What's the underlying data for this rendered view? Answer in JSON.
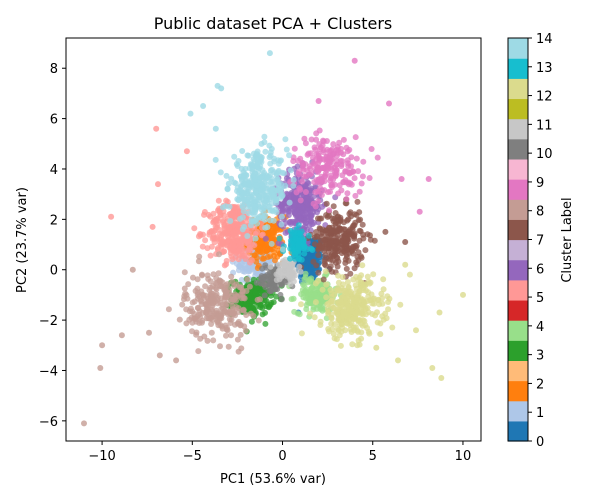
{
  "chart_data": {
    "type": "scatter",
    "title": "Public dataset PCA + Clusters",
    "xlabel": "PC1 (53.6% var)",
    "ylabel": "PC2 (23.7% var)",
    "xlim": [
      -12,
      11
    ],
    "ylim": [
      -6.8,
      9.2
    ],
    "x_ticks": [
      -10,
      -5,
      0,
      5,
      10
    ],
    "y_ticks": [
      -6,
      -4,
      -2,
      0,
      2,
      4,
      6,
      8
    ],
    "grid": false,
    "legend": "none",
    "colorbar": {
      "label": "Cluster Label",
      "min": 0,
      "max": 14,
      "ticks": [
        0,
        1,
        2,
        3,
        4,
        5,
        6,
        7,
        8,
        9,
        10,
        11,
        12,
        13,
        14
      ],
      "colors": [
        "#1f77b4",
        "#aec7e8",
        "#ff7f0e",
        "#ffbb78",
        "#2ca02c",
        "#98df8a",
        "#d62728",
        "#ff9896",
        "#9467bd",
        "#c5b0d5",
        "#8c564b",
        "#c49c94",
        "#e377c2",
        "#f7b6d2",
        "#7f7f7f",
        "#c7c7c7",
        "#bcbd22",
        "#dbdb8d",
        "#17becf",
        "#9edae5"
      ]
    },
    "clusters": [
      {
        "label": 0,
        "color": "#1f77b4",
        "center": [
          1.5,
          0.4
        ],
        "spread": [
          0.4,
          0.5
        ],
        "n": 180
      },
      {
        "label": 1,
        "color": "#aec7e8",
        "center": [
          -1.5,
          0.3
        ],
        "spread": [
          0.5,
          0.5
        ],
        "n": 140
      },
      {
        "label": 2,
        "color": "#ff7f0e",
        "center": [
          -0.9,
          1.2
        ],
        "spread": [
          0.5,
          0.45
        ],
        "n": 180
      },
      {
        "label": 3,
        "color": "#2ca02c",
        "center": [
          -1.7,
          -1.1
        ],
        "spread": [
          0.55,
          0.35
        ],
        "n": 200
      },
      {
        "label": 4,
        "color": "#98df8a",
        "center": [
          1.9,
          -1.0
        ],
        "spread": [
          0.6,
          0.35
        ],
        "n": 150
      },
      {
        "label": 5,
        "color": "#ff9896",
        "center": [
          -2.7,
          1.5
        ],
        "spread": [
          0.7,
          0.6
        ],
        "n": 300
      },
      {
        "label": 6,
        "color": "#9467bd",
        "center": [
          1.0,
          2.6
        ],
        "spread": [
          0.6,
          0.65
        ],
        "n": 300
      },
      {
        "label": 7,
        "color": "#8c564b",
        "center": [
          3.1,
          1.2
        ],
        "spread": [
          0.7,
          0.6
        ],
        "n": 260
      },
      {
        "label": 8,
        "color": "#c49c94",
        "center": [
          -3.6,
          -1.4
        ],
        "spread": [
          0.9,
          0.7
        ],
        "n": 260
      },
      {
        "label": 9,
        "color": "#e377c2",
        "center": [
          2.5,
          4.1
        ],
        "spread": [
          1.0,
          0.6
        ],
        "n": 200
      },
      {
        "label": 10,
        "color": "#7f7f7f",
        "center": [
          -0.5,
          -0.4
        ],
        "spread": [
          0.4,
          0.3
        ],
        "n": 80
      },
      {
        "label": 11,
        "color": "#c7c7c7",
        "center": [
          0.3,
          0.0
        ],
        "spread": [
          0.3,
          0.25
        ],
        "n": 60
      },
      {
        "label": 12,
        "color": "#dbdb8d",
        "center": [
          3.8,
          -1.5
        ],
        "spread": [
          0.9,
          0.6
        ],
        "n": 300
      },
      {
        "label": 13,
        "color": "#17becf",
        "center": [
          0.8,
          1.0
        ],
        "spread": [
          0.35,
          0.3
        ],
        "n": 90
      },
      {
        "label": 14,
        "color": "#9edae5",
        "center": [
          -1.3,
          3.2
        ],
        "spread": [
          0.8,
          0.7
        ],
        "n": 330
      }
    ],
    "outliers": [
      {
        "label": 14,
        "x": -0.7,
        "y": 8.6
      },
      {
        "label": 14,
        "x": -3.6,
        "y": 7.3
      },
      {
        "label": 14,
        "x": -3.4,
        "y": 7.2
      },
      {
        "label": 14,
        "x": -5.1,
        "y": 6.2
      },
      {
        "label": 14,
        "x": -4.4,
        "y": 6.5
      },
      {
        "label": 14,
        "x": -3.7,
        "y": 5.6
      },
      {
        "label": 9,
        "x": 4.0,
        "y": 8.3
      },
      {
        "label": 9,
        "x": 2.0,
        "y": 6.7
      },
      {
        "label": 9,
        "x": 5.9,
        "y": 6.6
      },
      {
        "label": 9,
        "x": 6.6,
        "y": 3.6
      },
      {
        "label": 9,
        "x": 7.6,
        "y": 2.3
      },
      {
        "label": 9,
        "x": 8.1,
        "y": 3.6
      },
      {
        "label": 5,
        "x": -7.0,
        "y": 5.6
      },
      {
        "label": 5,
        "x": -9.5,
        "y": 2.1
      },
      {
        "label": 5,
        "x": -7.2,
        "y": 1.7
      },
      {
        "label": 5,
        "x": -6.9,
        "y": 3.4
      },
      {
        "label": 5,
        "x": -5.3,
        "y": 4.7
      },
      {
        "label": 8,
        "x": -8.3,
        "y": 0.0
      },
      {
        "label": 8,
        "x": -8.9,
        "y": -2.6
      },
      {
        "label": 8,
        "x": -10.0,
        "y": -3.0
      },
      {
        "label": 8,
        "x": -10.1,
        "y": -3.9
      },
      {
        "label": 8,
        "x": -11.0,
        "y": -6.1
      },
      {
        "label": 8,
        "x": -7.4,
        "y": -2.5
      },
      {
        "label": 8,
        "x": -6.8,
        "y": -3.4
      },
      {
        "label": 8,
        "x": -5.9,
        "y": -3.6
      },
      {
        "label": 12,
        "x": 10.0,
        "y": -1.0
      },
      {
        "label": 12,
        "x": 8.7,
        "y": -1.7
      },
      {
        "label": 12,
        "x": 8.3,
        "y": -3.9
      },
      {
        "label": 12,
        "x": 8.8,
        "y": -4.3
      },
      {
        "label": 12,
        "x": 7.4,
        "y": -2.4
      },
      {
        "label": 12,
        "x": 6.4,
        "y": -3.6
      },
      {
        "label": 12,
        "x": 5.2,
        "y": -3.1
      },
      {
        "label": 12,
        "x": 6.8,
        "y": 0.2
      },
      {
        "label": 7,
        "x": 6.8,
        "y": 1.1
      },
      {
        "label": 7,
        "x": 5.7,
        "y": 1.5
      }
    ]
  }
}
